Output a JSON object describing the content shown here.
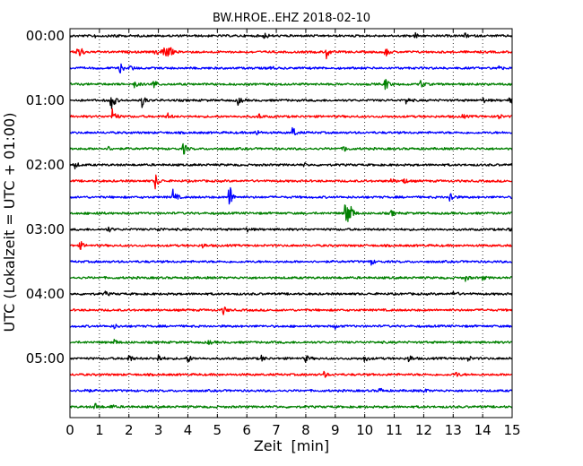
{
  "chart_data": {
    "type": "line",
    "title": "BW.HROE..EHZ 2018-02-10",
    "xlabel": "Zeit  [min]",
    "ylabel": "UTC (Lokalzeit = UTC + 01:00)",
    "xlim": [
      0,
      15
    ],
    "x_ticks": [
      "0",
      "1",
      "2",
      "3",
      "4",
      "5",
      "6",
      "7",
      "8",
      "9",
      "10",
      "11",
      "12",
      "13",
      "14",
      "15"
    ],
    "y_ticks": [
      "00:00",
      "01:00",
      "02:00",
      "03:00",
      "04:00",
      "05:00"
    ],
    "grid": "x-dotted",
    "trace_minutes": 15,
    "trace_colors": [
      "#000000",
      "#ff0000",
      "#0000ff",
      "#008000"
    ],
    "series": [
      {
        "start": "00:00",
        "events": [
          [
            0.8,
            0.3
          ],
          [
            1.5,
            0.4
          ],
          [
            6.6,
            0.5
          ],
          [
            11.7,
            0.4
          ],
          [
            13.4,
            0.3
          ]
        ]
      },
      {
        "start": "00:15",
        "events": [
          [
            0.25,
            0.9
          ],
          [
            0.35,
            0.5
          ],
          [
            2.9,
            0.6
          ],
          [
            3.15,
            1.0
          ],
          [
            3.25,
            0.9
          ],
          [
            3.4,
            0.5
          ],
          [
            8.7,
            0.9
          ],
          [
            10.7,
            0.7
          ]
        ]
      },
      {
        "start": "00:30",
        "events": [
          [
            1.7,
            0.7
          ],
          [
            2.05,
            0.4
          ],
          [
            6.8,
            0.3
          ],
          [
            14.5,
            0.5
          ]
        ]
      },
      {
        "start": "00:45",
        "events": [
          [
            2.2,
            0.6
          ],
          [
            2.8,
            1.1
          ],
          [
            10.7,
            1.0
          ],
          [
            11.9,
            0.6
          ]
        ]
      },
      {
        "start": "01:00",
        "events": [
          [
            1.4,
            1.8
          ],
          [
            2.45,
            1.0
          ],
          [
            5.7,
            0.6
          ],
          [
            11.4,
            0.5
          ],
          [
            14.0,
            0.4
          ],
          [
            14.9,
            0.5
          ]
        ]
      },
      {
        "start": "01:15",
        "events": [
          [
            1.45,
            1.4
          ],
          [
            3.3,
            0.5
          ],
          [
            6.4,
            0.4
          ],
          [
            13.3,
            0.3
          ],
          [
            14.5,
            0.6
          ]
        ]
      },
      {
        "start": "01:30",
        "events": [
          [
            6.3,
            0.5
          ],
          [
            7.55,
            0.9
          ]
        ]
      },
      {
        "start": "01:45",
        "events": [
          [
            1.3,
            0.3
          ],
          [
            3.85,
            0.9
          ],
          [
            9.3,
            0.5
          ]
        ]
      },
      {
        "start": "02:00",
        "events": [
          [
            0.15,
            0.6
          ],
          [
            7.9,
            0.3
          ]
        ]
      },
      {
        "start": "02:15",
        "events": [
          [
            2.9,
            1.2
          ],
          [
            10.9,
            0.4
          ],
          [
            11.3,
            0.6
          ]
        ]
      },
      {
        "start": "02:30",
        "events": [
          [
            3.5,
            1.2
          ],
          [
            5.4,
            2.2
          ],
          [
            12.9,
            1.0
          ]
        ]
      },
      {
        "start": "02:45",
        "events": [
          [
            0.9,
            0.3
          ],
          [
            9.35,
            2.8
          ],
          [
            9.5,
            1.2
          ],
          [
            10.9,
            0.4
          ]
        ]
      },
      {
        "start": "03:00",
        "events": [
          [
            1.3,
            0.4
          ],
          [
            3.0,
            0.3
          ],
          [
            6.0,
            0.3
          ],
          [
            14.9,
            0.3
          ]
        ]
      },
      {
        "start": "03:15",
        "events": [
          [
            0.35,
            0.6
          ],
          [
            4.5,
            0.3
          ]
        ]
      },
      {
        "start": "03:30",
        "events": [
          [
            10.2,
            0.5
          ]
        ]
      },
      {
        "start": "03:45",
        "events": [
          [
            13.4,
            0.5
          ],
          [
            14.0,
            0.3
          ]
        ]
      },
      {
        "start": "04:00",
        "events": [
          [
            1.2,
            0.3
          ],
          [
            13.0,
            0.5
          ]
        ]
      },
      {
        "start": "04:15",
        "events": [
          [
            5.2,
            0.6
          ]
        ]
      },
      {
        "start": "04:30",
        "events": [
          [
            1.5,
            0.3
          ],
          [
            9.0,
            0.3
          ]
        ]
      },
      {
        "start": "04:45",
        "events": [
          [
            1.5,
            0.4
          ],
          [
            4.7,
            0.3
          ]
        ]
      },
      {
        "start": "05:00",
        "events": [
          [
            2.0,
            0.6
          ],
          [
            3.0,
            0.6
          ],
          [
            4.0,
            0.6
          ],
          [
            6.5,
            0.4
          ],
          [
            8.0,
            0.5
          ],
          [
            10.0,
            0.5
          ],
          [
            11.5,
            0.6
          ],
          [
            13.5,
            0.4
          ]
        ]
      },
      {
        "start": "05:15",
        "events": [
          [
            8.6,
            0.5
          ],
          [
            13.1,
            0.4
          ]
        ]
      },
      {
        "start": "05:30",
        "events": [
          [
            0.5,
            0.4
          ],
          [
            10.5,
            0.4
          ],
          [
            12.0,
            0.3
          ]
        ]
      },
      {
        "start": "05:45",
        "events": [
          [
            0.85,
            0.5
          ],
          [
            1.4,
            0.3
          ]
        ]
      }
    ]
  }
}
